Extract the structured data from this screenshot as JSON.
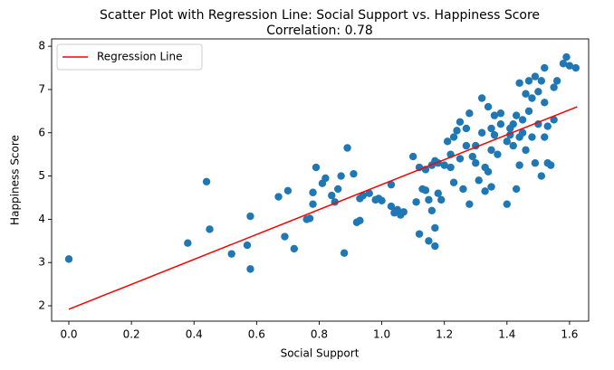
{
  "chart_data": {
    "type": "scatter",
    "title": "Scatter Plot with Regression Line: Social Support vs. Happiness Score",
    "subtitle": "Correlation: 0.78",
    "xlabel": "Social Support",
    "ylabel": "Happiness Score",
    "xlim": [
      -0.055,
      1.661
    ],
    "ylim": [
      1.645,
      8.17
    ],
    "xticks": [
      {
        "value": 0,
        "label": "0.0"
      },
      {
        "value": 0.2,
        "label": "0.2"
      },
      {
        "value": 0.4,
        "label": "0.4"
      },
      {
        "value": 0.6,
        "label": "0.6"
      },
      {
        "value": 0.8,
        "label": "0.8"
      },
      {
        "value": 1,
        "label": "1.0"
      },
      {
        "value": 1.2,
        "label": "1.2"
      },
      {
        "value": 1.4,
        "label": "1.4"
      },
      {
        "value": 1.6,
        "label": "1.6"
      }
    ],
    "yticks": [
      2,
      3,
      4,
      5,
      6,
      7,
      8
    ],
    "grid": false,
    "legend": "upper left",
    "series": [
      {
        "type": "scatter",
        "color": "#1f77b4",
        "x": [
          0,
          0.38,
          0.44,
          0.45,
          0.52,
          0.57,
          0.58,
          0.58,
          0.67,
          0.69,
          0.7,
          0.72,
          0.76,
          0.77,
          0.78,
          0.78,
          0.79,
          0.81,
          0.82,
          0.84,
          0.85,
          0.86,
          0.87,
          0.88,
          0.89,
          0.91,
          0.92,
          0.93,
          0.93,
          0.94,
          0.96,
          0.98,
          0.99,
          1.0,
          1.03,
          1.03,
          1.04,
          1.05,
          1.06,
          1.07,
          1.1,
          1.11,
          1.12,
          1.12,
          1.13,
          1.14,
          1.14,
          1.15,
          1.15,
          1.16,
          1.16,
          1.17,
          1.17,
          1.17,
          1.18,
          1.18,
          1.19,
          1.2,
          1.21,
          1.22,
          1.22,
          1.23,
          1.23,
          1.24,
          1.25,
          1.25,
          1.26,
          1.27,
          1.28,
          1.28,
          1.29,
          1.3,
          1.3,
          1.31,
          1.32,
          1.32,
          1.33,
          1.33,
          1.34,
          1.34,
          1.35,
          1.35,
          1.36,
          1.36,
          1.37,
          1.38,
          1.38,
          1.4,
          1.4,
          1.41,
          1.42,
          1.42,
          1.43,
          1.43,
          1.44,
          1.44,
          1.45,
          1.45,
          1.46,
          1.46,
          1.47,
          1.47,
          1.48,
          1.48,
          1.49,
          1.49,
          1.5,
          1.5,
          1.51,
          1.51,
          1.52,
          1.52,
          1.52,
          1.53,
          1.53,
          1.54,
          1.55,
          1.55,
          1.56,
          1.58,
          1.59,
          1.6,
          1.62,
          1.41,
          1.44,
          1.27,
          1.35
        ],
        "y": [
          3.08,
          3.45,
          4.87,
          3.77,
          3.2,
          3.4,
          4.07,
          2.85,
          4.52,
          3.6,
          4.66,
          3.32,
          4.0,
          4.02,
          4.35,
          4.62,
          5.2,
          4.83,
          4.95,
          4.55,
          4.4,
          4.7,
          5.0,
          3.22,
          5.65,
          5.05,
          3.93,
          3.97,
          4.48,
          4.55,
          4.6,
          4.45,
          4.48,
          4.43,
          4.8,
          4.3,
          4.15,
          4.22,
          4.1,
          4.17,
          5.45,
          4.4,
          5.2,
          3.66,
          4.7,
          4.67,
          5.15,
          4.45,
          3.5,
          5.25,
          4.2,
          5.35,
          3.38,
          3.8,
          4.6,
          5.3,
          4.45,
          5.25,
          5.8,
          5.5,
          5.2,
          5.9,
          4.85,
          6.05,
          6.25,
          5.4,
          4.7,
          5.7,
          4.35,
          6.45,
          5.45,
          5.7,
          5.3,
          4.9,
          6.8,
          6.0,
          5.2,
          4.65,
          6.6,
          5.1,
          4.75,
          5.6,
          6.4,
          5.95,
          5.5,
          6.45,
          6.2,
          4.35,
          5.8,
          5.95,
          6.2,
          5.7,
          6.4,
          4.7,
          7.15,
          5.25,
          6.3,
          6.0,
          6.9,
          5.6,
          7.2,
          6.5,
          5.9,
          6.8,
          7.3,
          5.3,
          6.2,
          6.95,
          5.0,
          7.2,
          6.7,
          7.5,
          5.9,
          6.15,
          5.3,
          5.25,
          7.05,
          6.3,
          7.2,
          7.6,
          7.75,
          7.55,
          7.5,
          6.1,
          5.9,
          6.1,
          6.1
        ]
      },
      {
        "type": "line",
        "name": "Regression Line",
        "color": "#ff0000",
        "x": [
          0,
          1.624
        ],
        "y": [
          1.92,
          6.6
        ]
      }
    ]
  }
}
